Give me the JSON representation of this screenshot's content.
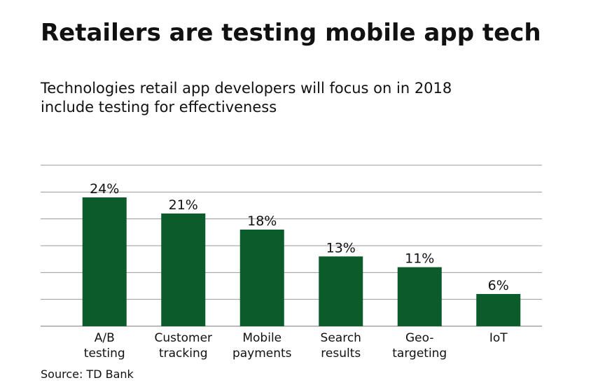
{
  "chart_data": {
    "type": "bar",
    "title": "Retailers are testing mobile app tech",
    "subtitle": "Technologies retail app developers will focus on in 2018\ninclude testing for effectiveness",
    "source": "Source: TD Bank",
    "categories": [
      "A/B\ntesting",
      "Customer\ntracking",
      "Mobile\npayments",
      "Search\nresults",
      "Geo-\ntargeting",
      "IoT"
    ],
    "values": [
      24,
      21,
      18,
      13,
      11,
      6
    ],
    "value_labels": [
      "24%",
      "21%",
      "18%",
      "13%",
      "11%",
      "6%"
    ],
    "color": "#0b5b2b",
    "ylim": [
      0,
      30
    ],
    "yticks": [
      0,
      5,
      10,
      15,
      20,
      25,
      30
    ],
    "grid": true
  }
}
